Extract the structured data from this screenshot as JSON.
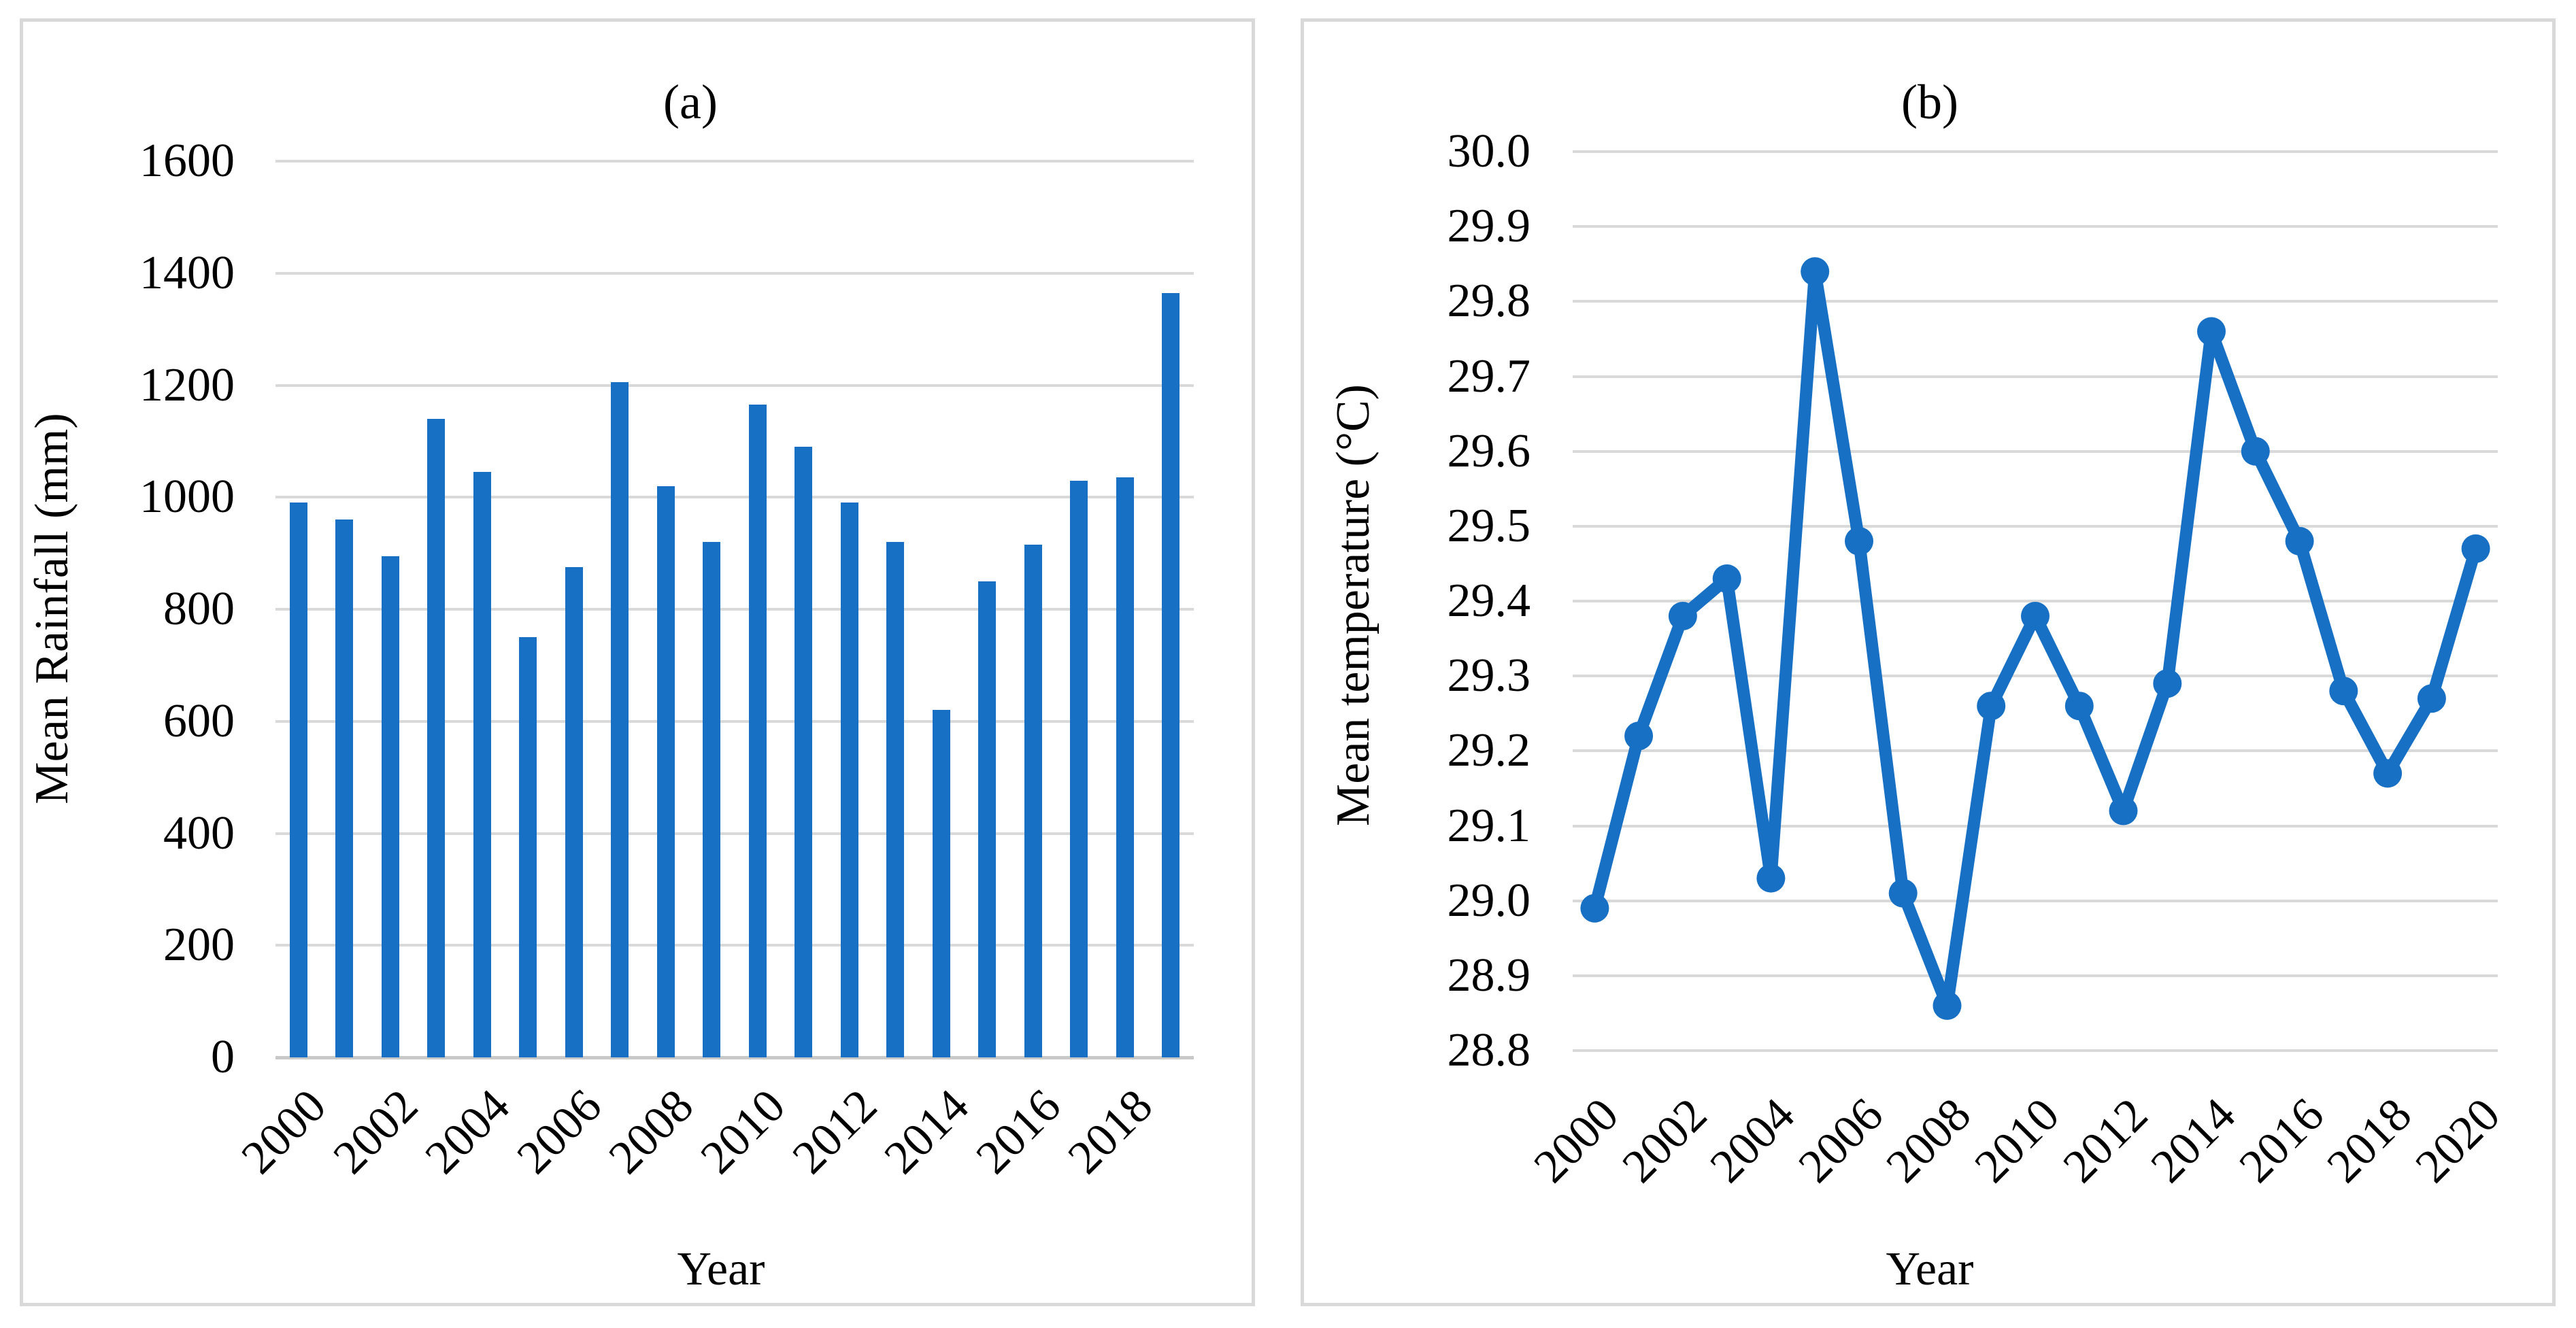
{
  "colors": {
    "accent": "#1770C4",
    "gridline": "#D9D9D9",
    "baseline": "#C9C9C9",
    "panel_border": "#D9D9D9",
    "text": "#000000",
    "background": "#FFFFFF"
  },
  "chart_data": [
    {
      "id": "a",
      "type": "bar",
      "title": "(a)",
      "xlabel": "Year",
      "ylabel": "Mean Rainfall (mm)",
      "categories": [
        "2000",
        "2001",
        "2002",
        "2003",
        "2004",
        "2005",
        "2006",
        "2007",
        "2008",
        "2009",
        "2010",
        "2011",
        "2012",
        "2013",
        "2014",
        "2015",
        "2016",
        "2017",
        "2018",
        "2019"
      ],
      "values": [
        990,
        960,
        895,
        1140,
        1045,
        750,
        875,
        1205,
        1020,
        920,
        1165,
        1090,
        990,
        920,
        620,
        850,
        915,
        1030,
        1035,
        1365
      ],
      "ylim": [
        0,
        1600
      ],
      "ytick_step": 200,
      "ytick_labels": [
        "0",
        "200",
        "400",
        "600",
        "800",
        "1000",
        "1200",
        "1400",
        "1600"
      ],
      "xtick_labels": [
        "2000",
        "2002",
        "2004",
        "2006",
        "2008",
        "2010",
        "2012",
        "2014",
        "2016",
        "2018"
      ],
      "xtick_every": 2,
      "grid": true,
      "legend": false
    },
    {
      "id": "b",
      "type": "line",
      "title": "(b)",
      "xlabel": "Year",
      "ylabel": "Mean temperature (°C)",
      "categories": [
        "2000",
        "2001",
        "2002",
        "2003",
        "2004",
        "2005",
        "2006",
        "2007",
        "2008",
        "2009",
        "2010",
        "2011",
        "2012",
        "2013",
        "2014",
        "2015",
        "2016",
        "2017",
        "2018",
        "2019",
        "2020"
      ],
      "values": [
        28.99,
        29.22,
        29.38,
        29.43,
        29.03,
        29.84,
        29.48,
        29.01,
        28.86,
        29.26,
        29.38,
        29.26,
        29.12,
        29.29,
        29.76,
        29.6,
        29.48,
        29.28,
        29.17,
        29.27,
        29.47
      ],
      "ylim": [
        28.8,
        30.0
      ],
      "ytick_step": 0.1,
      "ytick_labels": [
        "28.8",
        "28.9",
        "29.0",
        "29.1",
        "29.2",
        "29.3",
        "29.4",
        "29.5",
        "29.6",
        "29.7",
        "29.8",
        "29.9",
        "30.0"
      ],
      "xtick_labels": [
        "2000",
        "2002",
        "2004",
        "2006",
        "2008",
        "2010",
        "2012",
        "2014",
        "2016",
        "2018",
        "2020"
      ],
      "xtick_every": 2,
      "grid": true,
      "legend": false,
      "marker": "circle"
    }
  ]
}
